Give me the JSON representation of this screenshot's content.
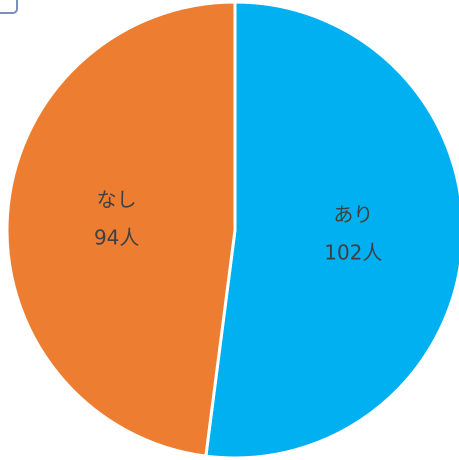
{
  "chart_data": {
    "type": "pie",
    "title": "",
    "slices": [
      {
        "name": "あり",
        "value": 102,
        "display_value": "102人",
        "color": "#00b0f0"
      },
      {
        "name": "なし",
        "value": 94,
        "display_value": "94人",
        "color": "#ed7d31"
      }
    ],
    "start_angle_deg": 90,
    "direction": "clockwise",
    "separator_color": "#ffffff",
    "legend": "none"
  }
}
